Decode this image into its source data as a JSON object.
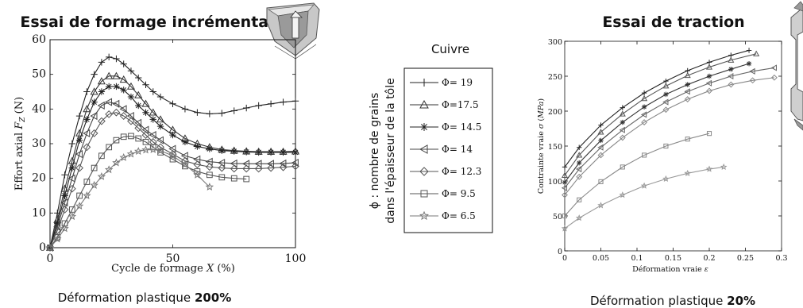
{
  "left_chart": {
    "title": "Essai de formage incrémental",
    "caption_prefix": "Déformation plastique ",
    "caption_bold": "200%",
    "chart_data": {
      "type": "line",
      "xlabel": "Cycle de formage X (%)",
      "ylabel": "Effort axial F_Z (N)",
      "xlim": [
        0,
        100
      ],
      "ylim": [
        0,
        60
      ],
      "xticks": [
        "0",
        "50",
        "100"
      ],
      "yticks": [
        "0",
        "10",
        "20",
        "30",
        "40",
        "50",
        "60"
      ],
      "grid": false,
      "series": [
        {
          "name": "Φ= 19",
          "marker": "plus",
          "x": [
            0,
            3,
            6,
            9,
            12,
            15,
            18,
            21,
            24,
            27,
            30,
            33,
            36,
            39,
            42,
            45,
            50,
            55,
            60,
            65,
            70,
            75,
            80,
            85,
            90,
            95,
            100
          ],
          "y": [
            0,
            10,
            21,
            30,
            38,
            45,
            50,
            53.5,
            55,
            54.5,
            53,
            51,
            49,
            47,
            45,
            43.5,
            41.5,
            40,
            39,
            38.6,
            38.8,
            39.5,
            40.3,
            41,
            41.5,
            42,
            42.3
          ]
        },
        {
          "name": "Φ=17.5",
          "marker": "triangle-up",
          "x": [
            0,
            3,
            6,
            9,
            12,
            15,
            18,
            21,
            24,
            27,
            30,
            33,
            36,
            39,
            42,
            45,
            50,
            55,
            60,
            65,
            70,
            75,
            80,
            85,
            90,
            95,
            100
          ],
          "y": [
            0,
            8,
            17,
            25,
            33,
            40,
            45,
            48,
            49.5,
            49.5,
            48.5,
            46.5,
            44,
            41.5,
            39,
            37,
            34,
            31.5,
            30,
            29,
            28.3,
            28,
            27.8,
            27.7,
            27.7,
            27.7,
            27.8
          ]
        },
        {
          "name": "Φ= 14.5",
          "marker": "asterisk",
          "x": [
            0,
            3,
            6,
            9,
            12,
            15,
            18,
            21,
            24,
            27,
            30,
            33,
            36,
            39,
            42,
            45,
            50,
            55,
            60,
            65,
            70,
            75,
            80,
            85,
            90,
            95,
            100
          ],
          "y": [
            0,
            7,
            15,
            23,
            31,
            37,
            42,
            45,
            46.5,
            46.5,
            45.5,
            43.5,
            41,
            39,
            37,
            35,
            32.5,
            30.5,
            29.2,
            28.5,
            28,
            27.8,
            27.6,
            27.5,
            27.5,
            27.5,
            27.5
          ]
        },
        {
          "name": "Φ= 14",
          "marker": "triangle-left",
          "x": [
            0,
            3,
            6,
            9,
            12,
            15,
            18,
            21,
            24,
            27,
            30,
            33,
            36,
            39,
            42,
            45,
            50,
            55,
            60,
            65,
            70,
            75,
            80,
            85,
            90,
            95,
            100
          ],
          "y": [
            0,
            6,
            13,
            20,
            27,
            33,
            38,
            41,
            42,
            41.5,
            40,
            38,
            36,
            34,
            32.5,
            31,
            28.5,
            26.5,
            25.5,
            24.8,
            24.5,
            24.3,
            24.2,
            24.2,
            24.2,
            24.3,
            24.5
          ]
        },
        {
          "name": "Φ= 12.3",
          "marker": "diamond",
          "x": [
            0,
            3,
            6,
            9,
            12,
            15,
            18,
            21,
            24,
            27,
            30,
            33,
            36,
            39,
            42,
            45,
            50,
            55,
            60,
            65,
            70,
            75,
            80,
            85,
            90,
            95,
            100
          ],
          "y": [
            0,
            5,
            11,
            17,
            23,
            29,
            33,
            36.5,
            38.5,
            39,
            38,
            36.5,
            34.5,
            32.5,
            30.5,
            29,
            27,
            25,
            24,
            23.3,
            23,
            22.8,
            22.8,
            22.8,
            23,
            23.2,
            23.5
          ]
        },
        {
          "name": "Φ= 9.5",
          "marker": "square",
          "x": [
            0,
            3,
            6,
            9,
            12,
            15,
            18,
            21,
            24,
            27,
            30,
            33,
            36,
            39,
            42,
            45,
            50,
            55,
            60,
            65,
            70,
            75,
            80
          ],
          "y": [
            0,
            3,
            7,
            11,
            15,
            19,
            23,
            26.5,
            29,
            31,
            32,
            32.2,
            31.5,
            30.5,
            29,
            27.5,
            25.5,
            23.5,
            22,
            21,
            20.3,
            20,
            19.8
          ]
        },
        {
          "name": "Φ= 6.5",
          "marker": "star",
          "x": [
            0,
            3,
            6,
            9,
            12,
            15,
            18,
            21,
            24,
            27,
            30,
            33,
            36,
            39,
            42,
            45,
            50,
            55,
            60,
            65
          ],
          "y": [
            0,
            2.5,
            5.5,
            9,
            12,
            15,
            18,
            20.5,
            22.5,
            24.5,
            26,
            27,
            27.8,
            28.2,
            28.3,
            28,
            26.5,
            24,
            21,
            17.5
          ]
        }
      ]
    }
  },
  "legend": {
    "title": "Cuivre",
    "side_note_line1": "ϕ : nombre de grains",
    "side_note_line2": "dans l'épaisseur de la tôle",
    "entries": [
      "Φ= 19",
      "Φ=17.5",
      "Φ= 14.5",
      "Φ= 14",
      "Φ= 12.3",
      "Φ= 9.5",
      "Φ= 6.5"
    ]
  },
  "right_chart": {
    "title": "Essai de traction",
    "caption_prefix": "Déformation plastique ",
    "caption_bold": "20%",
    "chart_data": {
      "type": "line",
      "xlabel": "Déformation vraie ε",
      "ylabel": "Contrainte vraie σ (MPa)",
      "xlim": [
        0,
        0.3
      ],
      "ylim": [
        0,
        300
      ],
      "xticks": [
        "0",
        "0.05",
        "0.1",
        "0.15",
        "0.2",
        "0.25",
        "0.3"
      ],
      "yticks": [
        "0",
        "50",
        "100",
        "150",
        "200",
        "250",
        "300"
      ],
      "grid": false,
      "series": [
        {
          "marker": "plus",
          "x": [
            0,
            0.02,
            0.05,
            0.08,
            0.11,
            0.14,
            0.17,
            0.2,
            0.23,
            0.255
          ],
          "y": [
            120,
            148,
            180,
            205,
            226,
            243,
            258,
            270,
            280,
            287
          ]
        },
        {
          "marker": "triangle-up",
          "x": [
            0,
            0.02,
            0.05,
            0.08,
            0.11,
            0.14,
            0.17,
            0.2,
            0.23,
            0.265
          ],
          "y": [
            108,
            137,
            170,
            196,
            218,
            236,
            251,
            263,
            273,
            282
          ]
        },
        {
          "marker": "asterisk",
          "x": [
            0,
            0.02,
            0.05,
            0.08,
            0.11,
            0.14,
            0.17,
            0.2,
            0.23,
            0.255
          ],
          "y": [
            98,
            126,
            158,
            184,
            206,
            224,
            238,
            250,
            260,
            268
          ]
        },
        {
          "marker": "triangle-left",
          "x": [
            0,
            0.02,
            0.05,
            0.08,
            0.11,
            0.14,
            0.17,
            0.2,
            0.23,
            0.26,
            0.29
          ],
          "y": [
            90,
            117,
            148,
            173,
            195,
            213,
            228,
            240,
            250,
            257,
            262
          ]
        },
        {
          "marker": "diamond",
          "x": [
            0,
            0.02,
            0.05,
            0.08,
            0.11,
            0.14,
            0.17,
            0.2,
            0.23,
            0.26,
            0.29
          ],
          "y": [
            80,
            106,
            137,
            162,
            184,
            202,
            217,
            229,
            238,
            244,
            248
          ]
        },
        {
          "marker": "square",
          "x": [
            0,
            0.02,
            0.05,
            0.08,
            0.11,
            0.14,
            0.17,
            0.2
          ],
          "y": [
            50,
            73,
            99,
            120,
            137,
            150,
            160,
            168
          ]
        },
        {
          "marker": "star",
          "x": [
            0,
            0.02,
            0.05,
            0.08,
            0.11,
            0.14,
            0.17,
            0.2,
            0.22
          ],
          "y": [
            32,
            47,
            65,
            80,
            93,
            103,
            111,
            117,
            120
          ]
        }
      ]
    }
  }
}
